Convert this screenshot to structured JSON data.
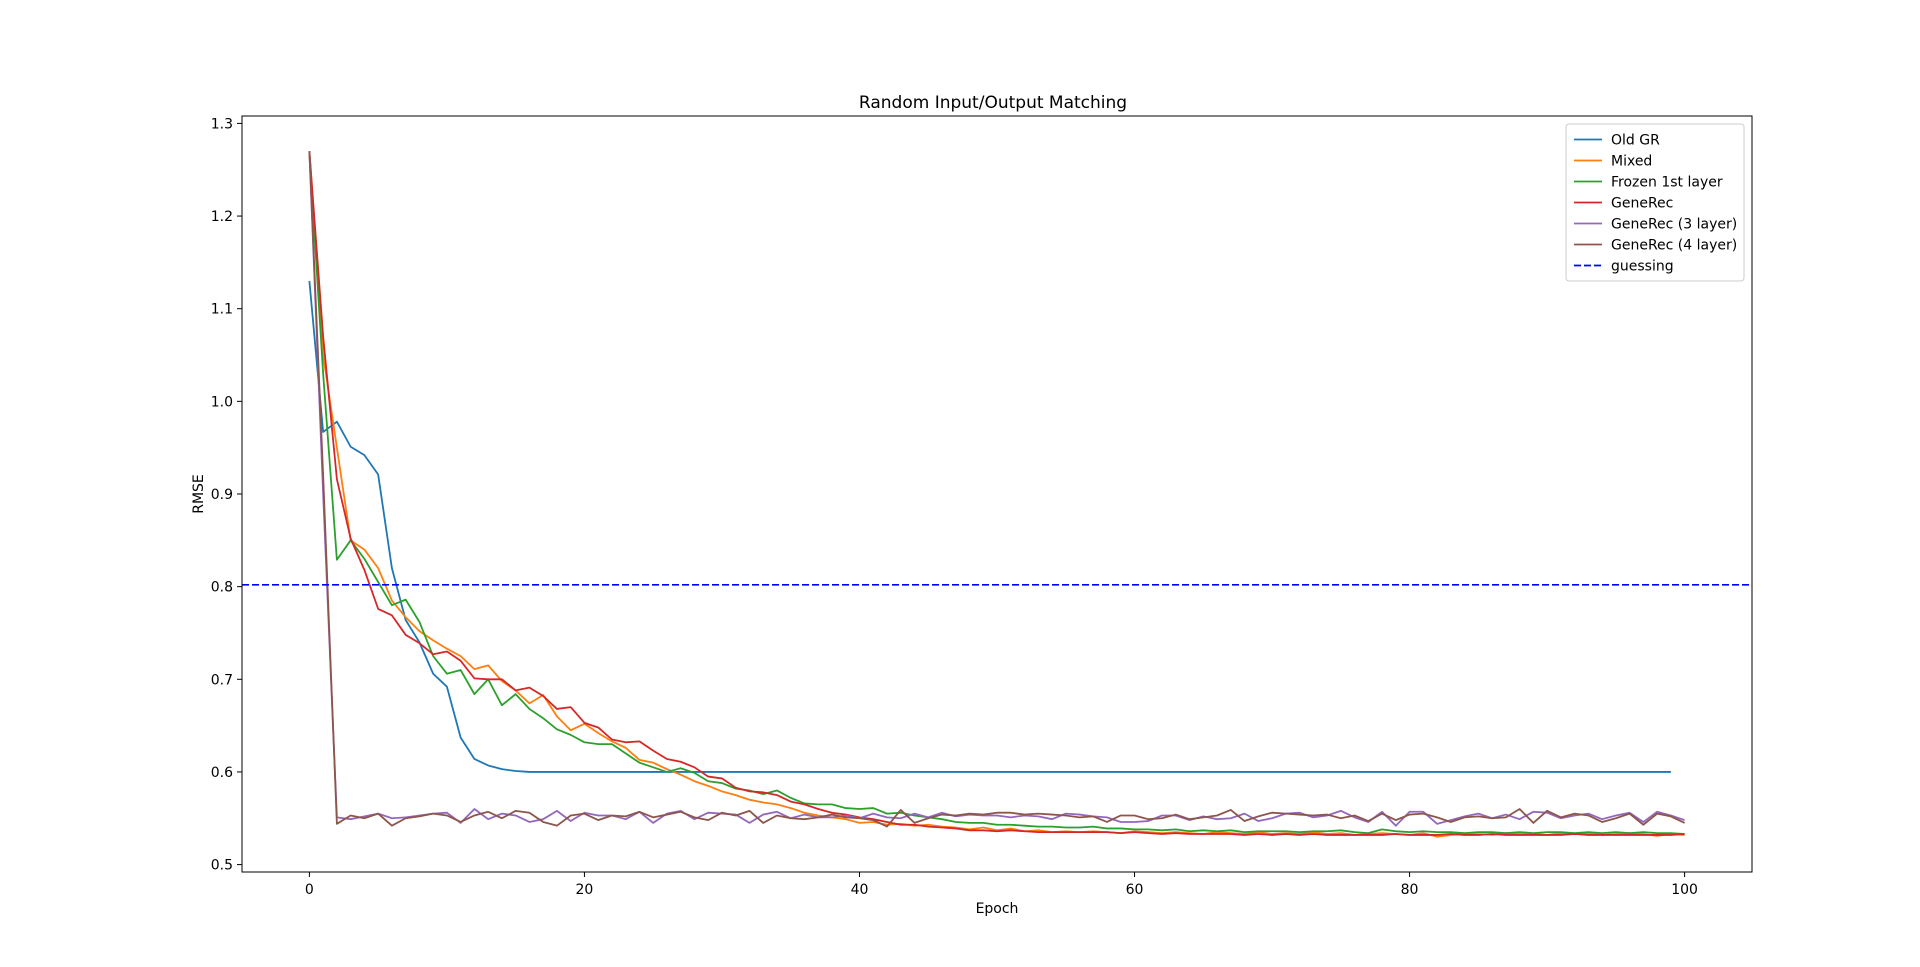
{
  "chart_data": {
    "type": "line",
    "title": "Random Input/Output Matching",
    "xlabel": "Epoch",
    "ylabel": "RMSE",
    "xlim": [
      -4.9,
      104.9
    ],
    "ylim": [
      0.492,
      1.308
    ],
    "xticks": [
      0,
      20,
      40,
      60,
      80,
      100
    ],
    "yticks": [
      0.5,
      0.6,
      0.7,
      0.8,
      0.9,
      1.0,
      1.1,
      1.2,
      1.3
    ],
    "xtick_labels": [
      "0",
      "20",
      "40",
      "60",
      "80",
      "100"
    ],
    "ytick_labels": [
      "0.5",
      "0.6",
      "0.7",
      "0.8",
      "0.9",
      "1.0",
      "1.1",
      "1.2",
      "1.3"
    ],
    "grid": false,
    "legend": "top-right",
    "series": [
      {
        "name": "Old GR",
        "color": "#1f77b4",
        "style": "solid",
        "x_start": 0,
        "values": [
          1.13,
          0.967,
          0.978,
          0.951,
          0.942,
          0.921,
          0.82,
          0.764,
          0.74,
          0.706,
          0.692,
          0.637,
          0.614,
          0.607,
          0.603,
          0.601,
          0.6,
          0.6,
          0.6,
          0.6,
          0.6,
          0.6,
          0.6,
          0.6,
          0.6,
          0.6,
          0.6,
          0.6,
          0.6,
          0.6,
          0.6,
          0.6,
          0.6,
          0.6,
          0.6,
          0.6,
          0.6,
          0.6,
          0.6,
          0.6,
          0.6,
          0.6,
          0.6,
          0.6,
          0.6,
          0.6,
          0.6,
          0.6,
          0.6,
          0.6,
          0.6,
          0.6,
          0.6,
          0.6,
          0.6,
          0.6,
          0.6,
          0.6,
          0.6,
          0.6,
          0.6,
          0.6,
          0.6,
          0.6,
          0.6,
          0.6,
          0.6,
          0.6,
          0.6,
          0.6,
          0.6,
          0.6,
          0.6,
          0.6,
          0.6,
          0.6,
          0.6,
          0.6,
          0.6,
          0.6,
          0.6,
          0.6,
          0.6,
          0.6,
          0.6,
          0.6,
          0.6,
          0.6,
          0.6,
          0.6,
          0.6,
          0.6,
          0.6,
          0.6,
          0.6,
          0.6,
          0.6,
          0.6,
          0.6,
          0.6
        ]
      },
      {
        "name": "Mixed",
        "color": "#ff7f0e",
        "style": "solid",
        "x_start": 0,
        "values": [
          1.27,
          1.05,
          0.95,
          0.85,
          0.84,
          0.82,
          0.785,
          0.767,
          0.752,
          0.742,
          0.733,
          0.725,
          0.711,
          0.715,
          0.698,
          0.688,
          0.674,
          0.683,
          0.66,
          0.645,
          0.652,
          0.642,
          0.633,
          0.626,
          0.613,
          0.61,
          0.603,
          0.597,
          0.59,
          0.585,
          0.579,
          0.575,
          0.57,
          0.567,
          0.565,
          0.561,
          0.556,
          0.553,
          0.551,
          0.549,
          0.545,
          0.546,
          0.543,
          0.544,
          0.542,
          0.543,
          0.541,
          0.54,
          0.538,
          0.54,
          0.537,
          0.539,
          0.536,
          0.537,
          0.535,
          0.536,
          0.535,
          0.536,
          0.535,
          0.534,
          0.536,
          0.535,
          0.534,
          0.535,
          0.534,
          0.533,
          0.535,
          0.534,
          0.533,
          0.535,
          0.533,
          0.534,
          0.533,
          0.535,
          0.533,
          0.534,
          0.532,
          0.533,
          0.534,
          0.533,
          0.532,
          0.534,
          0.53,
          0.532,
          0.533,
          0.533,
          0.532,
          0.534,
          0.533,
          0.533,
          0.532,
          0.534,
          0.533,
          0.534,
          0.532,
          0.533,
          0.534,
          0.533,
          0.531,
          0.533,
          0.532
        ]
      },
      {
        "name": "Frozen 1st layer",
        "color": "#2ca02c",
        "style": "solid",
        "x_start": 0,
        "values": [
          1.27,
          1.03,
          0.829,
          0.85,
          0.83,
          0.805,
          0.78,
          0.786,
          0.762,
          0.725,
          0.706,
          0.71,
          0.684,
          0.7,
          0.672,
          0.684,
          0.668,
          0.658,
          0.646,
          0.64,
          0.632,
          0.63,
          0.63,
          0.62,
          0.61,
          0.605,
          0.6,
          0.604,
          0.599,
          0.59,
          0.588,
          0.582,
          0.58,
          0.576,
          0.58,
          0.572,
          0.566,
          0.565,
          0.565,
          0.561,
          0.56,
          0.561,
          0.555,
          0.556,
          0.553,
          0.551,
          0.549,
          0.546,
          0.545,
          0.545,
          0.543,
          0.543,
          0.542,
          0.541,
          0.541,
          0.54,
          0.54,
          0.541,
          0.539,
          0.539,
          0.538,
          0.538,
          0.537,
          0.538,
          0.536,
          0.537,
          0.536,
          0.537,
          0.535,
          0.536,
          0.536,
          0.536,
          0.535,
          0.536,
          0.536,
          0.537,
          0.535,
          0.534,
          0.538,
          0.536,
          0.535,
          0.536,
          0.535,
          0.535,
          0.534,
          0.535,
          0.535,
          0.534,
          0.535,
          0.534,
          0.535,
          0.535,
          0.534,
          0.535,
          0.534,
          0.535,
          0.534,
          0.535,
          0.534,
          0.534,
          0.533
        ]
      },
      {
        "name": "GeneRec",
        "color": "#d62728",
        "style": "solid",
        "x_start": 0,
        "values": [
          1.27,
          1.07,
          0.916,
          0.852,
          0.818,
          0.776,
          0.769,
          0.748,
          0.739,
          0.727,
          0.73,
          0.72,
          0.701,
          0.7,
          0.7,
          0.688,
          0.691,
          0.682,
          0.668,
          0.67,
          0.653,
          0.648,
          0.635,
          0.632,
          0.633,
          0.623,
          0.614,
          0.611,
          0.605,
          0.595,
          0.593,
          0.583,
          0.579,
          0.578,
          0.575,
          0.568,
          0.565,
          0.56,
          0.556,
          0.554,
          0.551,
          0.549,
          0.546,
          0.543,
          0.543,
          0.541,
          0.54,
          0.539,
          0.537,
          0.537,
          0.536,
          0.537,
          0.536,
          0.535,
          0.535,
          0.535,
          0.535,
          0.535,
          0.535,
          0.534,
          0.535,
          0.534,
          0.533,
          0.534,
          0.533,
          0.533,
          0.533,
          0.533,
          0.532,
          0.533,
          0.532,
          0.533,
          0.532,
          0.533,
          0.532,
          0.532,
          0.532,
          0.532,
          0.532,
          0.533,
          0.532,
          0.532,
          0.532,
          0.533,
          0.532,
          0.532,
          0.533,
          0.532,
          0.532,
          0.532,
          0.532,
          0.532,
          0.533,
          0.532,
          0.532,
          0.532,
          0.532,
          0.532,
          0.532,
          0.532,
          0.533
        ]
      },
      {
        "name": "GeneRec (3 layer)",
        "color": "#9467bd",
        "style": "solid",
        "x_start": 0,
        "values": [
          1.27,
          0.9,
          0.551,
          0.549,
          0.552,
          0.555,
          0.55,
          0.551,
          0.553,
          0.555,
          0.556,
          0.545,
          0.56,
          0.549,
          0.555,
          0.553,
          0.546,
          0.549,
          0.558,
          0.547,
          0.556,
          0.553,
          0.553,
          0.549,
          0.557,
          0.545,
          0.555,
          0.558,
          0.549,
          0.556,
          0.555,
          0.554,
          0.545,
          0.554,
          0.557,
          0.55,
          0.554,
          0.551,
          0.551,
          0.553,
          0.55,
          0.555,
          0.551,
          0.55,
          0.555,
          0.551,
          0.556,
          0.552,
          0.554,
          0.553,
          0.553,
          0.551,
          0.553,
          0.552,
          0.549,
          0.555,
          0.554,
          0.552,
          0.551,
          0.546,
          0.546,
          0.547,
          0.553,
          0.553,
          0.548,
          0.552,
          0.549,
          0.55,
          0.555,
          0.547,
          0.55,
          0.555,
          0.556,
          0.551,
          0.553,
          0.558,
          0.551,
          0.546,
          0.557,
          0.542,
          0.557,
          0.557,
          0.544,
          0.548,
          0.552,
          0.555,
          0.55,
          0.554,
          0.549,
          0.557,
          0.556,
          0.55,
          0.553,
          0.555,
          0.549,
          0.553,
          0.556,
          0.546,
          0.557,
          0.553,
          0.548
        ]
      },
      {
        "name": "GeneRec (4 layer)",
        "color": "#8c564b",
        "style": "solid",
        "x_start": 0,
        "values": [
          1.27,
          0.92,
          0.544,
          0.553,
          0.55,
          0.555,
          0.542,
          0.55,
          0.552,
          0.555,
          0.553,
          0.546,
          0.553,
          0.557,
          0.55,
          0.558,
          0.556,
          0.546,
          0.542,
          0.553,
          0.555,
          0.548,
          0.553,
          0.552,
          0.557,
          0.551,
          0.554,
          0.557,
          0.551,
          0.548,
          0.556,
          0.553,
          0.558,
          0.545,
          0.553,
          0.55,
          0.549,
          0.551,
          0.554,
          0.551,
          0.55,
          0.548,
          0.541,
          0.559,
          0.545,
          0.55,
          0.554,
          0.553,
          0.555,
          0.554,
          0.556,
          0.556,
          0.554,
          0.555,
          0.554,
          0.553,
          0.551,
          0.552,
          0.546,
          0.553,
          0.553,
          0.549,
          0.55,
          0.554,
          0.549,
          0.551,
          0.553,
          0.559,
          0.547,
          0.552,
          0.556,
          0.555,
          0.554,
          0.553,
          0.554,
          0.55,
          0.553,
          0.547,
          0.555,
          0.548,
          0.554,
          0.555,
          0.551,
          0.546,
          0.551,
          0.552,
          0.55,
          0.551,
          0.56,
          0.545,
          0.558,
          0.551,
          0.555,
          0.553,
          0.546,
          0.55,
          0.555,
          0.543,
          0.555,
          0.552,
          0.545
        ]
      },
      {
        "name": "guessing",
        "color": "#0000ff",
        "style": "dashed",
        "constant": 0.802
      }
    ]
  }
}
